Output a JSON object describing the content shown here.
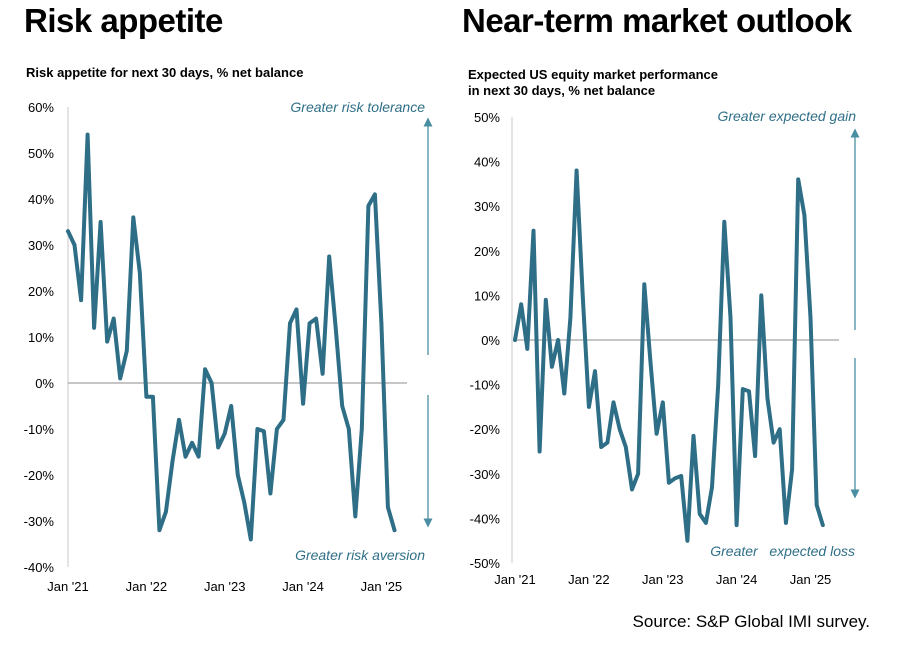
{
  "left_panel": {
    "title": "Risk appetite",
    "subtitle": "Risk appetite for next 30 days, % net balance",
    "annotation_top": "Greater risk tolerance",
    "annotation_bottom": "Greater risk aversion"
  },
  "right_panel": {
    "title": "Near-term market outlook",
    "subtitle_line1": "Expected US equity market performance",
    "subtitle_line2": "in next 30 days, % net balance",
    "annotation_top": "Greater expected gain",
    "annotation_bottom": "Greater   expected loss"
  },
  "source": "Source: S&P Global IMI survey.",
  "colors": {
    "line": "#2e6e86",
    "arrow": "#4a8ea3",
    "annotation": "#2f6f87"
  },
  "chart_data": [
    {
      "type": "line",
      "title": "Risk appetite",
      "subtitle": "Risk appetite for next 30 days, % net balance",
      "xlabel": "",
      "ylabel": "",
      "x_tick_labels": [
        "Jan '21",
        "Jan '22",
        "Jan '23",
        "Jan '24",
        "Jan '25"
      ],
      "x_tick_positions": [
        0,
        12,
        24,
        36,
        48
      ],
      "y_tick_labels": [
        "60%",
        "50%",
        "40%",
        "30%",
        "20%",
        "10%",
        "0%",
        "-10%",
        "-20%",
        "-30%",
        "-40%"
      ],
      "y_tick_values": [
        60,
        50,
        40,
        30,
        20,
        10,
        0,
        -10,
        -20,
        -30,
        -40
      ],
      "ylim": [
        -40,
        60
      ],
      "xlim": [
        0,
        51
      ],
      "series": [
        {
          "name": "Risk appetite",
          "x": [
            0,
            1,
            2,
            3,
            4,
            5,
            6,
            7,
            8,
            9,
            10,
            11,
            12,
            13,
            14,
            15,
            16,
            17,
            18,
            19,
            20,
            21,
            22,
            23,
            24,
            25,
            26,
            27,
            28,
            29,
            30,
            31,
            32,
            33,
            34,
            35,
            36,
            37,
            38,
            39,
            40,
            41,
            42,
            43,
            44,
            45,
            46,
            47,
            48,
            49,
            50
          ],
          "values": [
            33,
            30,
            18,
            54,
            12,
            35,
            9,
            14,
            1,
            7,
            36,
            24,
            -3,
            -3,
            -32,
            -28,
            -17,
            -8,
            -16,
            -13,
            -16,
            3,
            0,
            -14,
            -11,
            -5,
            -20,
            -26,
            -34,
            -10,
            -10.5,
            -24,
            -10,
            -8,
            13,
            16,
            -4.5,
            13,
            14,
            2,
            27.5,
            12,
            -5,
            -10,
            -29,
            -10,
            38.5,
            41,
            13,
            -27,
            -32
          ]
        }
      ]
    },
    {
      "type": "line",
      "title": "Near-term market outlook",
      "subtitle": "Expected US equity market performance in next 30 days, % net balance",
      "xlabel": "",
      "ylabel": "",
      "x_tick_labels": [
        "Jan '21",
        "Jan '22",
        "Jan '23",
        "Jan '24",
        "Jan '25"
      ],
      "x_tick_positions": [
        0,
        12,
        24,
        36,
        48
      ],
      "y_tick_labels": [
        "50%",
        "40%",
        "30%",
        "20%",
        "10%",
        "0%",
        "-10%",
        "-20%",
        "-30%",
        "-40%",
        "-50%"
      ],
      "y_tick_values": [
        50,
        40,
        30,
        20,
        10,
        0,
        -10,
        -20,
        -30,
        -40,
        -50
      ],
      "ylim": [
        -50,
        50
      ],
      "xlim": [
        0,
        51
      ],
      "series": [
        {
          "name": "Expected US equity market performance",
          "x": [
            0,
            1,
            2,
            3,
            4,
            5,
            6,
            7,
            8,
            9,
            10,
            11,
            12,
            13,
            14,
            15,
            16,
            17,
            18,
            19,
            20,
            21,
            22,
            23,
            24,
            25,
            26,
            27,
            28,
            29,
            30,
            31,
            32,
            33,
            34,
            35,
            36,
            37,
            38,
            39,
            40,
            41,
            42,
            43,
            44,
            45,
            46,
            47,
            48,
            49,
            50
          ],
          "values": [
            0,
            8,
            -2,
            24.5,
            -25,
            9,
            -6,
            0,
            -12,
            5,
            38,
            10,
            -15,
            -7,
            -24,
            -23,
            -14,
            -20,
            -24,
            -33.5,
            -30,
            12.5,
            -5,
            -21,
            -14,
            -32,
            -31,
            -30.5,
            -45,
            -21.5,
            -39,
            -41,
            -33,
            -10,
            26.5,
            5,
            -41.5,
            -11,
            -11.5,
            -26,
            10,
            -13,
            -23,
            -20,
            -41,
            -29,
            36,
            28,
            5,
            -37,
            -41.5
          ]
        }
      ]
    }
  ]
}
